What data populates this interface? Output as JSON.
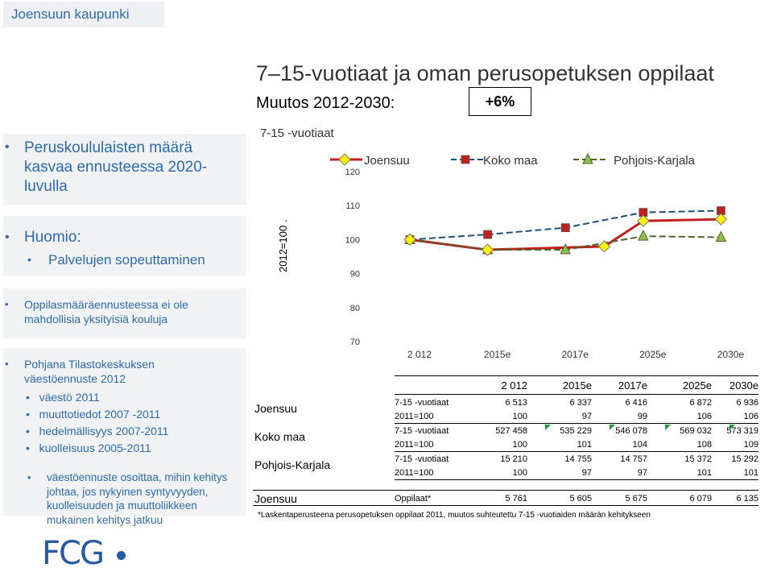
{
  "header": {
    "org": "Joensuun kaupunki"
  },
  "slide": {
    "title": "7–15-vuotiaat ja oman perusopetuksen oppilaat",
    "subtitle": "Muutos 2012-2030:",
    "change_pct": "+6%",
    "age_group": "7-15 -vuotiaat"
  },
  "sidebar": {
    "s1": "Peruskoululaisten määrä kasvaa ennusteessa 2020-luvulla",
    "s2": "Huomio:",
    "s2_sub": "Palvelujen sopeuttaminen",
    "s3": "Oppilasmääräennusteessa ei ole mahdollisia yksityisiä kouluja",
    "s4": "Pohjana Tilastokeskuksen väestöennuste 2012",
    "s4_items": [
      "väestö 2011",
      "muuttotiedot 2007 -2011",
      "hedelmällisyys 2007-2011",
      "kuolleisuus 2005-2011"
    ],
    "s5": "väestöennuste osoittaa, mihin kehitys johtaa, jos nykyinen syntyvyyden, kuolleisuuden ja muuttoliikkeen mukainen kehitys jatkuu"
  },
  "chart_data": {
    "type": "line",
    "ylabel": "2012=100 .",
    "categories": [
      "2 012",
      "2015e",
      "2017e",
      "2025e",
      "2030e"
    ],
    "x_positions": [
      0,
      1,
      2,
      3,
      4
    ],
    "ylim": [
      70,
      120
    ],
    "yticks": [
      120,
      110,
      100,
      90,
      80,
      70
    ],
    "legend_position": "top",
    "series": [
      {
        "name": "Joensuu",
        "color": "#c0201e",
        "marker": "diamond",
        "marker_color": "#fff200",
        "x": [
          0,
          1,
          2.5,
          3,
          4
        ],
        "values": [
          100,
          97,
          98,
          105.5,
          106
        ]
      },
      {
        "name": "Koko maa",
        "color": "#1f4e79",
        "marker": "square",
        "marker_color": "#c0201e",
        "x": [
          0,
          1,
          2,
          3,
          4
        ],
        "values": [
          100,
          101.5,
          103.5,
          108,
          108.5
        ]
      },
      {
        "name": "Pohjois-Karjala",
        "color": "#4f6228",
        "marker": "triangle",
        "marker_color": "#8fbf4a",
        "x": [
          0,
          1,
          2,
          3,
          4
        ],
        "values": [
          100,
          97,
          97,
          101,
          100.7
        ]
      }
    ]
  },
  "table": {
    "headers": [
      "2 012",
      "2015e",
      "2017e",
      "2025e",
      "2030e"
    ],
    "groups": [
      {
        "region": "Joensuu",
        "rows": [
          {
            "label": "7-15 -vuotiaat",
            "values": [
              "6 513",
              "6 337",
              "6 416",
              "6 872",
              "6 936"
            ]
          },
          {
            "label": "2011=100",
            "values": [
              "100",
              "97",
              "99",
              "106",
              "106"
            ]
          }
        ]
      },
      {
        "region": "Koko maa",
        "rows": [
          {
            "label": "7-15 -vuotiaat",
            "values": [
              "527 458",
              "535 229",
              "546 078",
              "569 032",
              "573 319"
            ]
          },
          {
            "label": "2011=100",
            "values": [
              "100",
              "101",
              "104",
              "108",
              "109"
            ]
          }
        ]
      },
      {
        "region": "Pohjois-Karjala",
        "rows": [
          {
            "label": "7-15 -vuotiaat",
            "values": [
              "15 210",
              "14 755",
              "14 757",
              "15 372",
              "15 292"
            ]
          },
          {
            "label": "2011=100",
            "values": [
              "100",
              "97",
              "97",
              "101",
              "101"
            ]
          }
        ]
      }
    ],
    "pupils": {
      "region": "Joensuu",
      "label": "Oppilaat*",
      "values": [
        "5 761",
        "5 605",
        "5 675",
        "6 079",
        "6 135"
      ]
    },
    "footnote": "*Laskentaperusteena perusopetuksen oppilaat 2011, muutos suhteutettu 7-15 -vuotiaiden määrän kehitykseen"
  },
  "logo": {
    "text": "FCG"
  }
}
